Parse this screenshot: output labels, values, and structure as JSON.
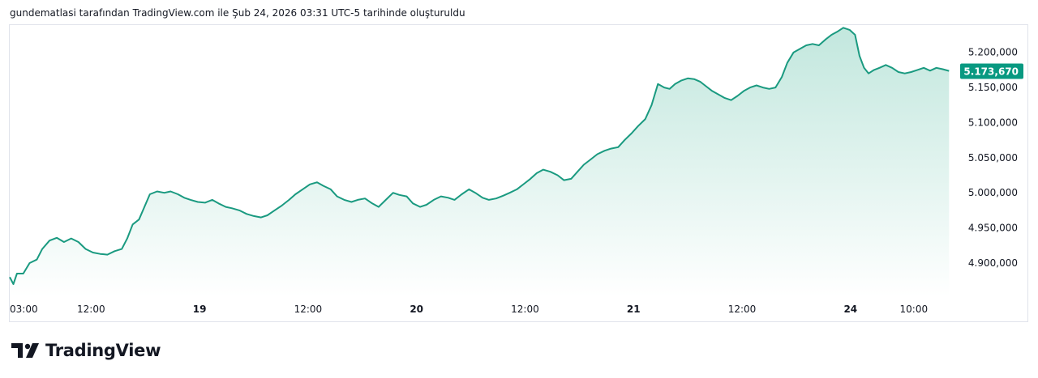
{
  "caption": "gundematlasi tarafından TradingView.com ile Şub 24, 2026 03:31 UTC-5 tarihinde oluşturuldu",
  "brand": {
    "name": "TradingView"
  },
  "colors": {
    "line": "#1a9a80",
    "fill_top": "#bfe6dc",
    "fill_bottom": "#ffffff",
    "badge": "#089981"
  },
  "chart_data": {
    "type": "area",
    "last_value_label": "5.173,670",
    "last_value": 5173670,
    "ylim": [
      4860000,
      5240000
    ],
    "y_ticks": [
      {
        "value": 4900000,
        "label": "4.900,000"
      },
      {
        "value": 4950000,
        "label": "4.950,000"
      },
      {
        "value": 5000000,
        "label": "5.000,000"
      },
      {
        "value": 5050000,
        "label": "5.050,000"
      },
      {
        "value": 5100000,
        "label": "5.100,000"
      },
      {
        "value": 5150000,
        "label": "5.150,000"
      },
      {
        "value": 5200000,
        "label": "5.200,000"
      }
    ],
    "x_ticks": [
      {
        "pos": 0.0,
        "label": "03:00",
        "bold": false
      },
      {
        "pos": 9.0,
        "label": "12:00",
        "bold": false
      },
      {
        "pos": 21.0,
        "label": "19",
        "bold": true
      },
      {
        "pos": 33.0,
        "label": "12:00",
        "bold": false
      },
      {
        "pos": 45.0,
        "label": "20",
        "bold": true
      },
      {
        "pos": 57.0,
        "label": "12:00",
        "bold": false
      },
      {
        "pos": 69.0,
        "label": "21",
        "bold": true
      },
      {
        "pos": 81.0,
        "label": "12:00",
        "bold": false
      },
      {
        "pos": 93.0,
        "label": "24",
        "bold": true
      },
      {
        "pos": 100.0,
        "label": "10:00",
        "bold": false
      }
    ],
    "x_range": [
      0,
      104.5
    ],
    "series": [
      {
        "points": [
          [
            0,
            4880000
          ],
          [
            0.4,
            4870000
          ],
          [
            0.8,
            4885000
          ],
          [
            1.5,
            4885000
          ],
          [
            2.2,
            4900000
          ],
          [
            3.0,
            4905000
          ],
          [
            3.6,
            4920000
          ],
          [
            4.4,
            4932000
          ],
          [
            5.2,
            4936000
          ],
          [
            6.0,
            4930000
          ],
          [
            6.8,
            4935000
          ],
          [
            7.6,
            4930000
          ],
          [
            8.4,
            4920000
          ],
          [
            9.2,
            4915000
          ],
          [
            10.0,
            4913000
          ],
          [
            10.8,
            4912000
          ],
          [
            11.6,
            4917000
          ],
          [
            12.4,
            4920000
          ],
          [
            13.0,
            4935000
          ],
          [
            13.6,
            4955000
          ],
          [
            14.3,
            4962000
          ],
          [
            14.9,
            4980000
          ],
          [
            15.5,
            4998000
          ],
          [
            16.3,
            5002000
          ],
          [
            17.1,
            5000000
          ],
          [
            17.8,
            5002000
          ],
          [
            18.6,
            4998000
          ],
          [
            19.3,
            4993000
          ],
          [
            20.0,
            4990000
          ],
          [
            20.8,
            4987000
          ],
          [
            21.6,
            4986000
          ],
          [
            22.4,
            4990000
          ],
          [
            23.1,
            4985000
          ],
          [
            23.9,
            4980000
          ],
          [
            24.6,
            4978000
          ],
          [
            25.4,
            4975000
          ],
          [
            26.2,
            4970000
          ],
          [
            27.0,
            4967000
          ],
          [
            27.8,
            4965000
          ],
          [
            28.5,
            4968000
          ],
          [
            29.3,
            4975000
          ],
          [
            30.1,
            4982000
          ],
          [
            30.9,
            4990000
          ],
          [
            31.6,
            4998000
          ],
          [
            32.4,
            5005000
          ],
          [
            33.2,
            5012000
          ],
          [
            34.0,
            5015000
          ],
          [
            34.7,
            5010000
          ],
          [
            35.5,
            5005000
          ],
          [
            36.2,
            4995000
          ],
          [
            37.0,
            4990000
          ],
          [
            37.8,
            4987000
          ],
          [
            38.5,
            4990000
          ],
          [
            39.3,
            4992000
          ],
          [
            40.1,
            4985000
          ],
          [
            40.8,
            4980000
          ],
          [
            41.6,
            4990000
          ],
          [
            42.4,
            5000000
          ],
          [
            43.1,
            4997000
          ],
          [
            43.9,
            4995000
          ],
          [
            44.6,
            4985000
          ],
          [
            45.4,
            4980000
          ],
          [
            46.1,
            4983000
          ],
          [
            46.9,
            4990000
          ],
          [
            47.7,
            4995000
          ],
          [
            48.5,
            4993000
          ],
          [
            49.2,
            4990000
          ],
          [
            50.0,
            4998000
          ],
          [
            50.8,
            5005000
          ],
          [
            51.5,
            5000000
          ],
          [
            52.3,
            4993000
          ],
          [
            53.0,
            4990000
          ],
          [
            53.8,
            4992000
          ],
          [
            54.6,
            4996000
          ],
          [
            55.3,
            5000000
          ],
          [
            56.1,
            5005000
          ],
          [
            56.9,
            5013000
          ],
          [
            57.6,
            5020000
          ],
          [
            58.3,
            5028000
          ],
          [
            59.0,
            5033000
          ],
          [
            59.8,
            5030000
          ],
          [
            60.6,
            5025000
          ],
          [
            61.3,
            5018000
          ],
          [
            62.1,
            5020000
          ],
          [
            62.8,
            5030000
          ],
          [
            63.5,
            5040000
          ],
          [
            64.2,
            5047000
          ],
          [
            65.0,
            5055000
          ],
          [
            65.8,
            5060000
          ],
          [
            66.5,
            5063000
          ],
          [
            67.3,
            5065000
          ],
          [
            68.0,
            5075000
          ],
          [
            68.8,
            5085000
          ],
          [
            69.5,
            5095000
          ],
          [
            70.3,
            5105000
          ],
          [
            71.0,
            5125000
          ],
          [
            71.7,
            5155000
          ],
          [
            72.4,
            5150000
          ],
          [
            73.0,
            5148000
          ],
          [
            73.6,
            5155000
          ],
          [
            74.3,
            5160000
          ],
          [
            75.0,
            5163000
          ],
          [
            75.7,
            5162000
          ],
          [
            76.4,
            5158000
          ],
          [
            77.0,
            5152000
          ],
          [
            77.7,
            5145000
          ],
          [
            78.4,
            5140000
          ],
          [
            79.1,
            5135000
          ],
          [
            79.8,
            5132000
          ],
          [
            80.5,
            5138000
          ],
          [
            81.2,
            5145000
          ],
          [
            81.9,
            5150000
          ],
          [
            82.6,
            5153000
          ],
          [
            83.3,
            5150000
          ],
          [
            84.0,
            5148000
          ],
          [
            84.7,
            5150000
          ],
          [
            85.4,
            5165000
          ],
          [
            86.0,
            5185000
          ],
          [
            86.7,
            5200000
          ],
          [
            87.4,
            5205000
          ],
          [
            88.1,
            5210000
          ],
          [
            88.8,
            5212000
          ],
          [
            89.5,
            5210000
          ],
          [
            90.2,
            5218000
          ],
          [
            90.9,
            5225000
          ],
          [
            91.6,
            5230000
          ],
          [
            92.2,
            5235000
          ],
          [
            92.9,
            5232000
          ],
          [
            93.5,
            5225000
          ],
          [
            94.0,
            5195000
          ],
          [
            94.5,
            5178000
          ],
          [
            95.0,
            5170000
          ],
          [
            95.6,
            5175000
          ],
          [
            96.2,
            5178000
          ],
          [
            96.9,
            5182000
          ],
          [
            97.6,
            5178000
          ],
          [
            98.3,
            5172000
          ],
          [
            99.0,
            5170000
          ],
          [
            99.7,
            5172000
          ],
          [
            100.4,
            5175000
          ],
          [
            101.1,
            5178000
          ],
          [
            101.8,
            5174000
          ],
          [
            102.5,
            5178000
          ],
          [
            103.2,
            5176000
          ],
          [
            103.9,
            5173670
          ]
        ]
      }
    ]
  }
}
